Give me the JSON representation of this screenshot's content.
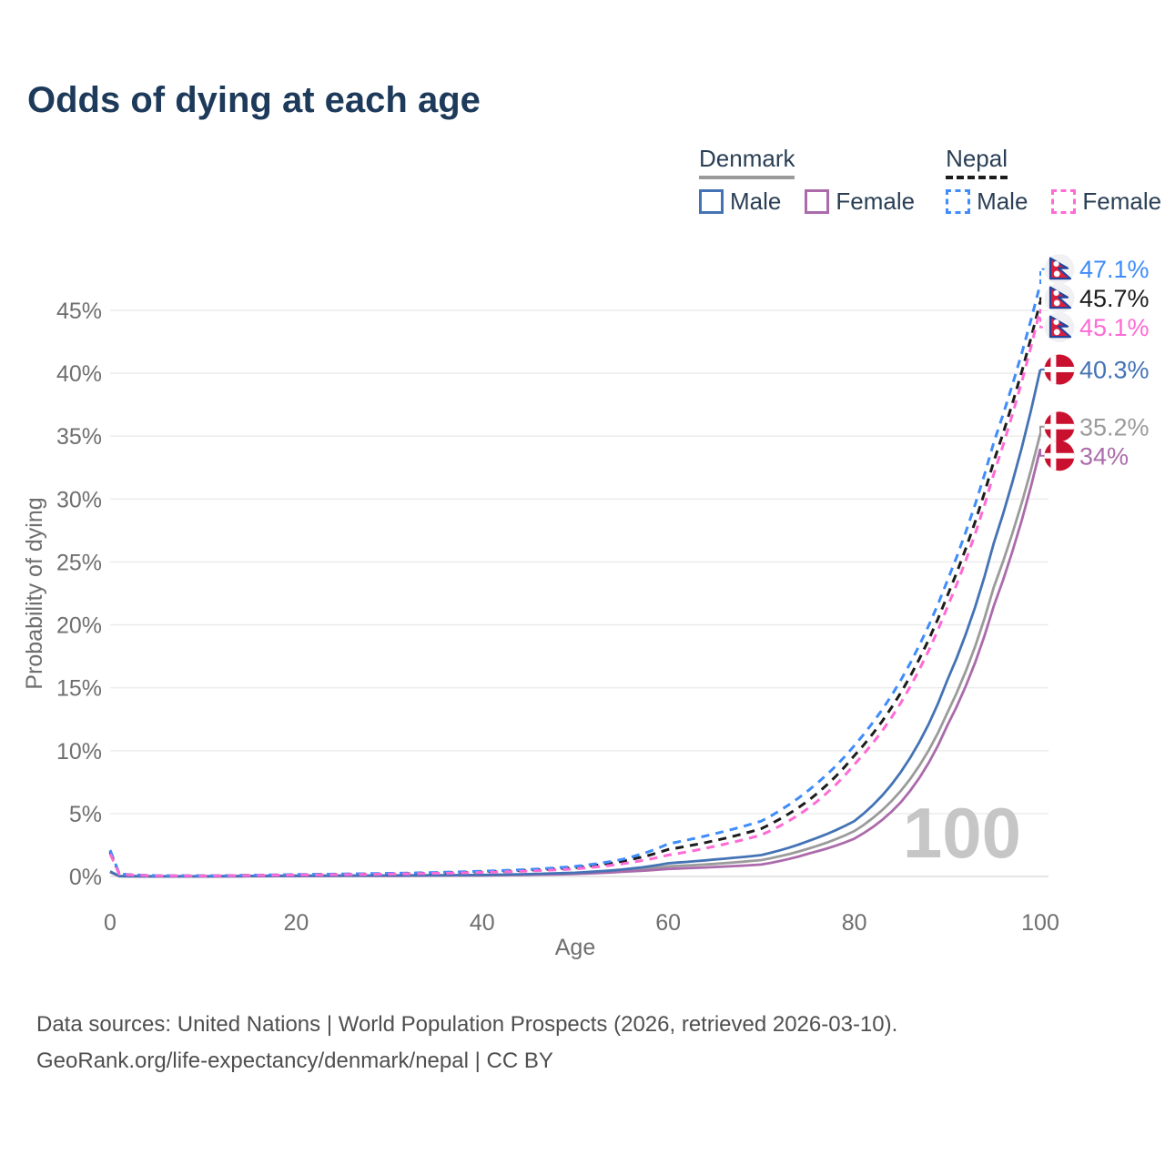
{
  "page": {
    "title": "Odds of dying at each age"
  },
  "legend": {
    "groups": [
      {
        "label": "Denmark",
        "line_style": "solid",
        "underline_color": "#9a9a9a",
        "items": [
          {
            "label": "Male",
            "color": "#4473b5",
            "dash": "solid"
          },
          {
            "label": "Female",
            "color": "#ab6bab",
            "dash": "solid"
          }
        ]
      },
      {
        "label": "Nepal",
        "line_style": "dashed",
        "underline_color": "#1c1c1c",
        "items": [
          {
            "label": "Male",
            "color": "#3f8cfa",
            "dash": "dashed"
          },
          {
            "label": "Female",
            "color": "#ff6ad5",
            "dash": "dashed"
          }
        ]
      }
    ]
  },
  "chart_data": {
    "type": "line",
    "title": "Odds of dying at each age",
    "xlabel": "Age",
    "ylabel": "Probability of dying",
    "xlim": [
      0,
      100
    ],
    "ylim": [
      0,
      48.5
    ],
    "x_ticks": [
      0,
      20,
      40,
      60,
      80,
      100
    ],
    "y_ticks": [
      0,
      5,
      10,
      15,
      20,
      25,
      30,
      35,
      40,
      45
    ],
    "y_tick_suffix": "%",
    "grid": "horizontal",
    "watermark": "100",
    "legend_position": "top-right",
    "series": [
      {
        "name": "Denmark (both sexes)",
        "country": "Denmark",
        "sex": "both",
        "color": "#9b9b9b",
        "dash": "solid",
        "flag": "denmark",
        "end_label": "35.2%",
        "points": [
          [
            0,
            0.38
          ],
          [
            1,
            0.025
          ],
          [
            5,
            0.01
          ],
          [
            10,
            0.01
          ],
          [
            15,
            0.03
          ],
          [
            20,
            0.05
          ],
          [
            25,
            0.06
          ],
          [
            30,
            0.07
          ],
          [
            35,
            0.085
          ],
          [
            40,
            0.1
          ],
          [
            45,
            0.16
          ],
          [
            50,
            0.25
          ],
          [
            55,
            0.45
          ],
          [
            60,
            0.8
          ],
          [
            65,
            1.0
          ],
          [
            70,
            1.3
          ],
          [
            75,
            2.2
          ],
          [
            80,
            3.6
          ],
          [
            85,
            6.8
          ],
          [
            90,
            13.0
          ],
          [
            95,
            23.0
          ],
          [
            100,
            35.2
          ]
        ]
      },
      {
        "name": "Denmark Female",
        "country": "Denmark",
        "sex": "female",
        "color": "#ab6bab",
        "dash": "solid",
        "flag": "denmark",
        "end_label": "34%",
        "points": [
          [
            0,
            0.35
          ],
          [
            1,
            0.02
          ],
          [
            5,
            0.008
          ],
          [
            10,
            0.008
          ],
          [
            15,
            0.02
          ],
          [
            20,
            0.03
          ],
          [
            25,
            0.04
          ],
          [
            30,
            0.05
          ],
          [
            35,
            0.07
          ],
          [
            40,
            0.09
          ],
          [
            45,
            0.13
          ],
          [
            50,
            0.2
          ],
          [
            55,
            0.37
          ],
          [
            60,
            0.6
          ],
          [
            65,
            0.75
          ],
          [
            70,
            0.95
          ],
          [
            75,
            1.8
          ],
          [
            80,
            3.0
          ],
          [
            85,
            5.9
          ],
          [
            90,
            12.0
          ],
          [
            95,
            21.5
          ],
          [
            100,
            34
          ]
        ]
      },
      {
        "name": "Denmark Male",
        "country": "Denmark",
        "sex": "male",
        "color": "#4473b5",
        "dash": "solid",
        "flag": "denmark",
        "end_label": "40.3%",
        "points": [
          [
            0,
            0.4
          ],
          [
            1,
            0.03
          ],
          [
            5,
            0.012
          ],
          [
            10,
            0.012
          ],
          [
            15,
            0.04
          ],
          [
            20,
            0.06
          ],
          [
            25,
            0.07
          ],
          [
            30,
            0.08
          ],
          [
            35,
            0.1
          ],
          [
            40,
            0.12
          ],
          [
            45,
            0.19
          ],
          [
            50,
            0.3
          ],
          [
            55,
            0.55
          ],
          [
            60,
            1.05
          ],
          [
            65,
            1.35
          ],
          [
            70,
            1.7
          ],
          [
            75,
            2.8
          ],
          [
            80,
            4.4
          ],
          [
            85,
            8.3
          ],
          [
            90,
            15.6
          ],
          [
            95,
            26.5
          ],
          [
            100,
            40.3
          ]
        ]
      },
      {
        "name": "Nepal (both sexes)",
        "country": "Nepal",
        "sex": "both",
        "color": "#1c1c1c",
        "dash": "dashed",
        "flag": "nepal",
        "end_label": "45.7%",
        "points": [
          [
            0,
            1.95
          ],
          [
            1,
            0.18
          ],
          [
            5,
            0.06
          ],
          [
            10,
            0.05
          ],
          [
            15,
            0.09
          ],
          [
            20,
            0.14
          ],
          [
            25,
            0.18
          ],
          [
            30,
            0.22
          ],
          [
            35,
            0.28
          ],
          [
            40,
            0.37
          ],
          [
            45,
            0.5
          ],
          [
            50,
            0.7
          ],
          [
            55,
            1.2
          ],
          [
            60,
            2.15
          ],
          [
            65,
            2.85
          ],
          [
            70,
            3.8
          ],
          [
            75,
            6.0
          ],
          [
            80,
            9.6
          ],
          [
            85,
            14.6
          ],
          [
            90,
            22.3
          ],
          [
            95,
            33.0
          ],
          [
            100,
            45.7
          ]
        ]
      },
      {
        "name": "Nepal Male",
        "country": "Nepal",
        "sex": "male",
        "color": "#3f8cfa",
        "dash": "dashed",
        "flag": "nepal",
        "end_label": "47.1%",
        "points": [
          [
            0,
            2.1
          ],
          [
            1,
            0.2
          ],
          [
            5,
            0.07
          ],
          [
            10,
            0.06
          ],
          [
            15,
            0.1
          ],
          [
            20,
            0.16
          ],
          [
            25,
            0.2
          ],
          [
            30,
            0.25
          ],
          [
            35,
            0.32
          ],
          [
            40,
            0.42
          ],
          [
            45,
            0.56
          ],
          [
            50,
            0.8
          ],
          [
            55,
            1.35
          ],
          [
            60,
            2.6
          ],
          [
            65,
            3.4
          ],
          [
            70,
            4.4
          ],
          [
            75,
            6.8
          ],
          [
            80,
            10.4
          ],
          [
            85,
            15.6
          ],
          [
            90,
            23.5
          ],
          [
            95,
            34.5
          ],
          [
            100,
            47.1
          ]
        ]
      },
      {
        "name": "Nepal Female",
        "country": "Nepal",
        "sex": "female",
        "color": "#ff6ad5",
        "dash": "dashed",
        "flag": "nepal",
        "end_label": "45.1%",
        "points": [
          [
            0,
            1.8
          ],
          [
            1,
            0.16
          ],
          [
            5,
            0.055
          ],
          [
            10,
            0.045
          ],
          [
            15,
            0.08
          ],
          [
            20,
            0.12
          ],
          [
            25,
            0.15
          ],
          [
            30,
            0.19
          ],
          [
            35,
            0.25
          ],
          [
            40,
            0.32
          ],
          [
            45,
            0.43
          ],
          [
            50,
            0.6
          ],
          [
            55,
            1.0
          ],
          [
            60,
            1.7
          ],
          [
            65,
            2.4
          ],
          [
            70,
            3.3
          ],
          [
            75,
            5.4
          ],
          [
            80,
            8.9
          ],
          [
            85,
            13.8
          ],
          [
            90,
            21.4
          ],
          [
            95,
            32.0
          ],
          [
            100,
            45.1
          ]
        ]
      }
    ]
  },
  "caption": {
    "line1": "Data sources: United Nations | World Population Prospects (2026, retrieved 2026-03-10).",
    "line2": "GeoRank.org/life-expectancy/denmark/nepal | CC BY"
  }
}
